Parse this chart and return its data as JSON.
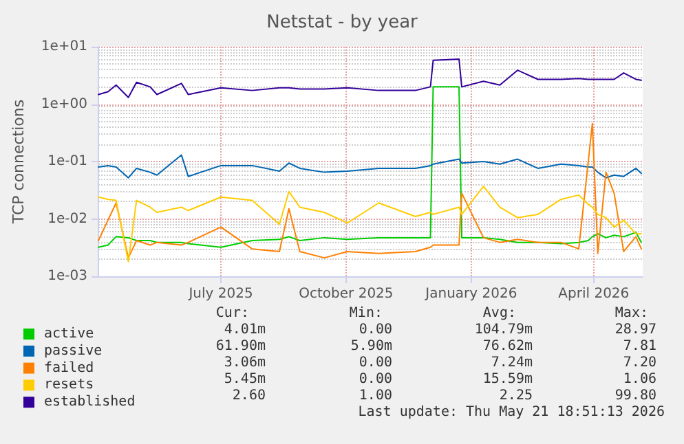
{
  "chart_data": {
    "type": "line",
    "title": "Netstat - by year",
    "ylabel": "TCP connections",
    "x": [
      "2025-04-02",
      "2025-04-09",
      "2025-04-15",
      "2025-04-24",
      "2025-04-30",
      "2025-05-10",
      "2025-05-15",
      "2025-06-02",
      "2025-06-07",
      "2025-07-01",
      "2025-07-24",
      "2025-08-13",
      "2025-08-20",
      "2025-08-28",
      "2025-09-15",
      "2025-10-02",
      "2025-10-25",
      "2025-11-21",
      "2025-12-02",
      "2025-12-04",
      "2025-12-23",
      "2025-12-25",
      "2026-01-10",
      "2026-01-22",
      "2026-02-04",
      "2026-02-19",
      "2026-03-08",
      "2026-03-21",
      "2026-03-28",
      "2026-03-31",
      "2026-04-04",
      "2026-04-10",
      "2026-04-16",
      "2026-04-23",
      "2026-05-02",
      "2026-05-06"
    ],
    "series": [
      {
        "name": "active",
        "color": "#00cc00",
        "values": [
          0.0032,
          0.0035,
          0.0049,
          0.0047,
          0.0042,
          0.0042,
          0.0039,
          0.0039,
          0.0037,
          0.0032,
          0.0042,
          0.0044,
          0.0049,
          0.0042,
          0.0047,
          0.0044,
          0.0047,
          0.0047,
          0.0047,
          2.0,
          2.0,
          0.0047,
          0.0047,
          0.0044,
          0.0039,
          0.0039,
          0.0037,
          0.0039,
          0.0042,
          0.0049,
          0.0055,
          0.0047,
          0.0052,
          0.0049,
          0.0058,
          0.0039
        ]
      },
      {
        "name": "passive",
        "color": "#0066b3",
        "values": [
          0.08,
          0.085,
          0.08,
          0.052,
          0.076,
          0.065,
          0.058,
          0.13,
          0.055,
          0.085,
          0.085,
          0.068,
          0.094,
          0.076,
          0.065,
          0.068,
          0.076,
          0.076,
          0.085,
          0.09,
          0.11,
          0.094,
          0.1,
          0.09,
          0.11,
          0.076,
          0.09,
          0.085,
          0.08,
          0.08,
          0.065,
          0.052,
          0.058,
          0.055,
          0.076,
          0.062
        ]
      },
      {
        "name": "failed",
        "color": "#ff8000",
        "values": [
          0.0042,
          0.0095,
          0.019,
          0.0021,
          0.0042,
          0.0035,
          0.0039,
          0.0035,
          0.0039,
          0.0072,
          0.003,
          0.0027,
          0.015,
          0.0027,
          0.0021,
          0.0027,
          0.0025,
          0.0027,
          0.0032,
          0.0035,
          0.0035,
          0.028,
          0.0047,
          0.0039,
          0.0044,
          0.0039,
          0.0039,
          0.003,
          0.1,
          0.46,
          0.0025,
          0.065,
          0.028,
          0.0027,
          0.0049,
          0.003
        ]
      },
      {
        "name": "resets",
        "color": "#ffcc00",
        "values": [
          0.024,
          0.022,
          0.021,
          0.0018,
          0.021,
          0.016,
          0.013,
          0.016,
          0.014,
          0.024,
          0.021,
          0.0081,
          0.03,
          0.016,
          0.013,
          0.0085,
          0.019,
          0.011,
          0.013,
          0.012,
          0.016,
          0.012,
          0.037,
          0.016,
          0.0105,
          0.012,
          0.022,
          0.026,
          0.018,
          0.016,
          0.012,
          0.0105,
          0.0072,
          0.0095,
          0.0055,
          0.0055
        ]
      },
      {
        "name": "established",
        "color": "#330099",
        "values": [
          1.47,
          1.64,
          2.15,
          1.31,
          2.4,
          2.0,
          1.47,
          2.3,
          1.47,
          1.93,
          1.73,
          1.93,
          1.93,
          1.83,
          1.83,
          1.93,
          1.73,
          1.73,
          2.0,
          5.8,
          6.1,
          2.0,
          2.5,
          2.15,
          3.9,
          2.7,
          2.7,
          2.8,
          2.7,
          2.7,
          2.7,
          2.7,
          2.7,
          3.5,
          2.7,
          2.6
        ]
      }
    ],
    "xlim": [
      "2025-04-02",
      "2026-05-07"
    ],
    "xticks": [
      {
        "value": "2025-07-01",
        "label": "July 2025"
      },
      {
        "value": "2025-10-01",
        "label": "October 2025"
      },
      {
        "value": "2026-01-01",
        "label": "January 2026"
      },
      {
        "value": "2026-04-01",
        "label": "April 2026"
      }
    ],
    "ylim": [
      0.001,
      10
    ],
    "yticks": [
      {
        "value": 0.001,
        "label": "1e-03"
      },
      {
        "value": 0.01,
        "label": "1e-02"
      },
      {
        "value": 0.1,
        "label": "1e-01"
      },
      {
        "value": 1,
        "label": "1e+00"
      },
      {
        "value": 10,
        "label": "1e+01"
      }
    ],
    "log": "y",
    "grid": true,
    "legend": "bottom left",
    "marker": "none",
    "line_style": "solid",
    "annotations": [
      "Cur:",
      "Min:",
      "Avg:",
      "Max:",
      "4.01m",
      "0.00",
      "104.79m",
      "28.97",
      "61.90m",
      "5.90m",
      "76.62m",
      "7.81",
      "3.06m",
      "0.00",
      "7.24m",
      "7.20",
      "5.45m",
      "0.00",
      "15.59m",
      "1.06",
      "2.60",
      "1.00",
      "2.25",
      "99.80",
      "Last update: Thu May 21 18:51:13 2026"
    ]
  }
}
